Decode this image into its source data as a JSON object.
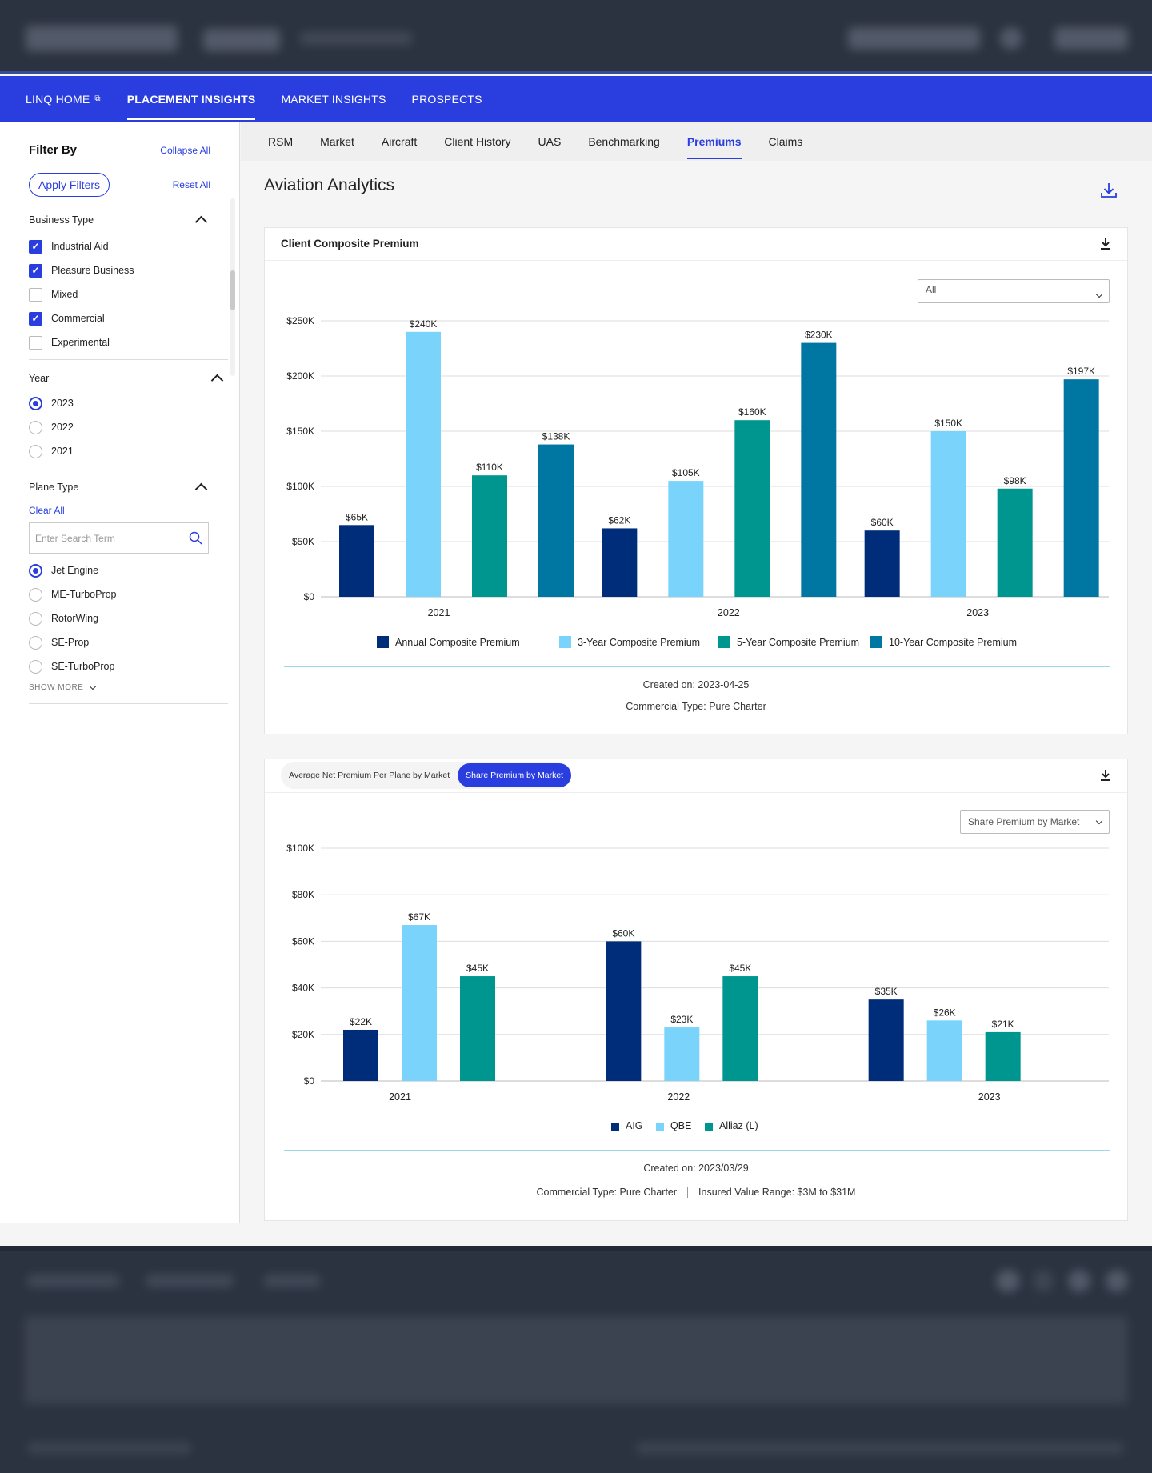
{
  "nav": {
    "items": [
      {
        "label": "LINQ HOME"
      },
      {
        "label": "PLACEMENT INSIGHTS"
      },
      {
        "label": "MARKET INSIGHTS"
      },
      {
        "label": "PROSPECTS"
      }
    ]
  },
  "sidebar": {
    "title": "Filter By",
    "collapse_all": "Collapse All",
    "apply_filters": "Apply Filters",
    "reset_all": "Reset All",
    "business_type": {
      "label": "Business Type",
      "options": [
        {
          "label": "Industrial Aid",
          "checked": true
        },
        {
          "label": "Pleasure Business",
          "checked": true
        },
        {
          "label": "Mixed",
          "checked": false
        },
        {
          "label": "Commercial",
          "checked": true
        },
        {
          "label": "Experimental",
          "checked": false
        }
      ]
    },
    "year": {
      "label": "Year",
      "options": [
        {
          "label": "2023",
          "selected": true
        },
        {
          "label": "2022",
          "selected": false
        },
        {
          "label": "2021",
          "selected": false
        }
      ]
    },
    "plane_type": {
      "label": "Plane Type",
      "clear_all": "Clear All",
      "search_placeholder": "Enter Search Term",
      "options": [
        {
          "label": "Jet Engine",
          "selected": true
        },
        {
          "label": "ME-TurboProp",
          "selected": false
        },
        {
          "label": "RotorWing",
          "selected": false
        },
        {
          "label": "SE-Prop",
          "selected": false
        },
        {
          "label": "SE-TurboProp",
          "selected": false
        }
      ],
      "show_more": "SHOW MORE"
    }
  },
  "subtabs": [
    "RSM",
    "Market",
    "Aircraft",
    "Client History",
    "UAS",
    "Benchmarking",
    "Premiums",
    "Claims"
  ],
  "page_title": "Aviation Analytics",
  "colors": {
    "annual": "#002d7a",
    "three_year": "#7ad3fb",
    "five_year": "#009690",
    "ten_year": "#0077a3",
    "accent": "#2a3ee0"
  },
  "card1": {
    "title": "Client Composite Premium",
    "select_value": "All",
    "created_on": "Created on: 2023-04-25",
    "commercial_type": "Commercial Type: Pure Charter"
  },
  "card2": {
    "pill_1": "Average Net Premium Per Plane by Market",
    "pill_2": "Share Premium by Market",
    "select_value": "Share Premium by Market",
    "created_on": "Created on: 2023/03/29",
    "commercial_type": "Commercial Type: Pure Charter",
    "insured_range": "Insured Value Range: $3M to $31M"
  },
  "chart_data": [
    {
      "type": "bar",
      "title": "Client Composite Premium",
      "categories": [
        "2021",
        "2022",
        "2023"
      ],
      "ylim": [
        0,
        250000
      ],
      "yticks": [
        "$0",
        "$50K",
        "$100K",
        "$150K",
        "$200K",
        "$250K"
      ],
      "legend_position": "bottom",
      "series": [
        {
          "name": "Annual Composite Premium",
          "values": [
            65000,
            62000,
            60000
          ],
          "labels": [
            "$65K",
            "$62K",
            "$60K"
          ],
          "color": "#002d7a"
        },
        {
          "name": "3-Year Composite Premium",
          "values": [
            240000,
            105000,
            150000
          ],
          "labels": [
            "$240K",
            "$105K",
            "$150K"
          ],
          "color": "#7ad3fb"
        },
        {
          "name": "5-Year Composite Premium",
          "values": [
            110000,
            160000,
            98000
          ],
          "labels": [
            "$110K",
            "$160K",
            "$98K"
          ],
          "color": "#009690"
        },
        {
          "name": "10-Year Composite Premium",
          "values": [
            138000,
            230000,
            197000
          ],
          "labels": [
            "$138K",
            "$230K",
            "$197K"
          ],
          "color": "#0077a3"
        }
      ]
    },
    {
      "type": "bar",
      "title": "Share Premium by Market",
      "categories": [
        "2021",
        "2022",
        "2023"
      ],
      "ylim": [
        0,
        100000
      ],
      "yticks": [
        "$0",
        "$20K",
        "$40K",
        "$60K",
        "$80K",
        "$100K"
      ],
      "legend_position": "bottom",
      "series": [
        {
          "name": "AIG",
          "values": [
            22000,
            60000,
            35000
          ],
          "labels": [
            "$22K",
            "$60K",
            "$35K"
          ],
          "color": "#002d7a"
        },
        {
          "name": "QBE",
          "values": [
            67000,
            23000,
            26000
          ],
          "labels": [
            "$67K",
            "$23K",
            "$26K"
          ],
          "color": "#7ad3fb"
        },
        {
          "name": "Alliaz (L)",
          "values": [
            45000,
            45000,
            21000
          ],
          "labels": [
            "$45K",
            "$45K",
            "$21K"
          ],
          "color": "#009690"
        }
      ]
    }
  ]
}
